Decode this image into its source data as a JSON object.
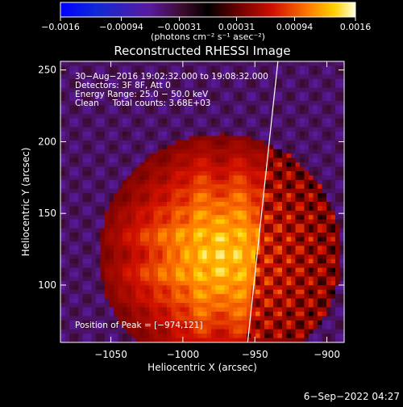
{
  "chart_data": {
    "type": "heatmap",
    "title": "Reconstructed RHESSI Image",
    "xlabel": "Heliocentric X (arcsec)",
    "ylabel": "Heliocentric Y (arcsec)",
    "xlim": [
      -1085,
      -888
    ],
    "ylim": [
      60,
      256
    ],
    "xticks": [
      -1050,
      -1000,
      -950,
      -900
    ],
    "xtick_labels": [
      "−1050",
      "−1000",
      "−950",
      "−900"
    ],
    "yticks": [
      100,
      150,
      200,
      250
    ],
    "ytick_labels": [
      "100",
      "150",
      "200",
      "250"
    ],
    "colorbar": {
      "range": [
        -0.0016,
        0.0016
      ],
      "ticks": [
        -0.0016,
        -0.00094,
        -0.00031,
        0.00031,
        0.00094,
        0.0016
      ],
      "tick_labels": [
        "−0.0016",
        "−0.00094",
        "−0.00031",
        "0.00031",
        "0.00094",
        "0.0016"
      ],
      "unit_label": "(photons cm⁻² s⁻¹ asec⁻²)"
    },
    "annotations": [
      "30−Aug−2016 19:02:32.000 to 19:08:32.000",
      "Detectors: 3F 8F, Att 0",
      "Energy Range: 25.0 − 50.0 keV",
      "Clean     Total counts: 3.68E+03"
    ],
    "peak_label": "Position of Peak = [−974,121]",
    "peak": [
      -974,
      121
    ],
    "limb_line": [
      [
        -955,
        60
      ],
      [
        -934,
        256
      ]
    ],
    "timestamp": "6−Sep−2022 04:27"
  }
}
